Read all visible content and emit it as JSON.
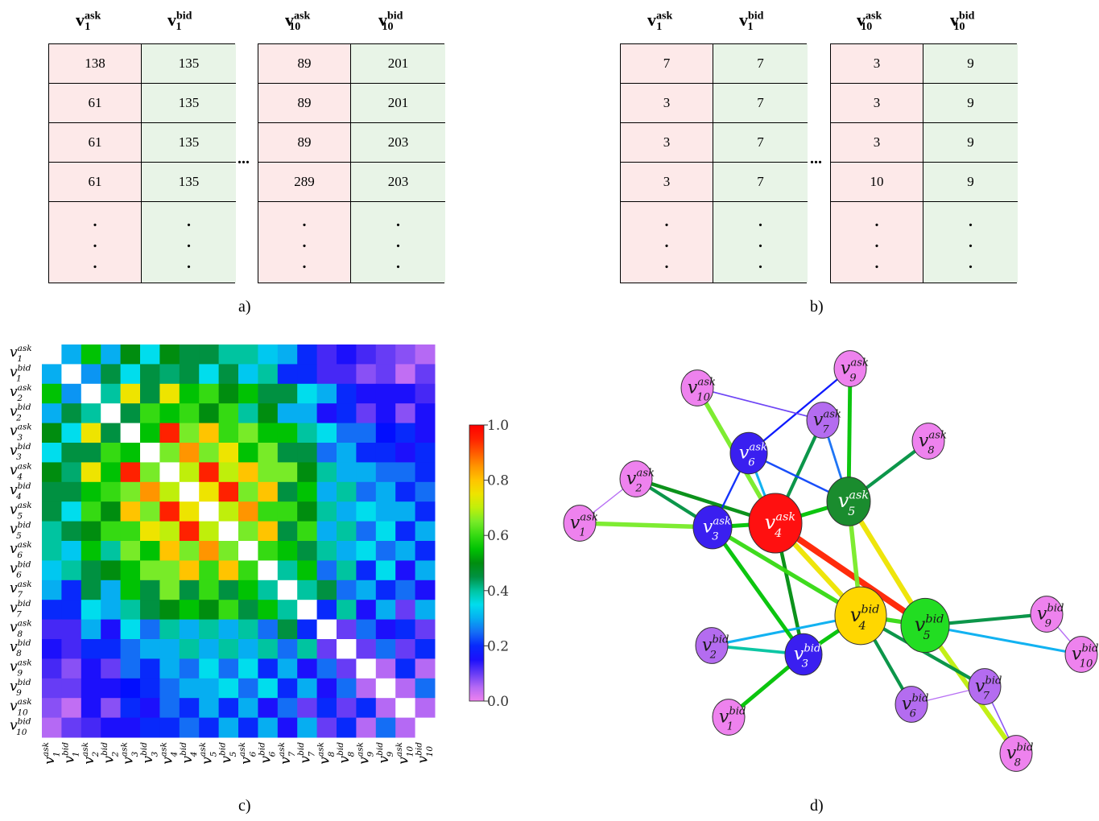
{
  "panel_a": {
    "caption": "a)",
    "headers": [
      "v1ask",
      "v1bid",
      "v10ask",
      "v10bid"
    ],
    "left_rows": [
      [
        "138",
        "135"
      ],
      [
        "61",
        "135"
      ],
      [
        "61",
        "135"
      ],
      [
        "61",
        "135"
      ]
    ],
    "right_rows": [
      [
        "89",
        "201"
      ],
      [
        "89",
        "201"
      ],
      [
        "89",
        "203"
      ],
      [
        "289",
        "203"
      ]
    ],
    "ellipsis": "..."
  },
  "panel_b": {
    "caption": "b)",
    "left_rows": [
      [
        "7",
        "7"
      ],
      [
        "3",
        "7"
      ],
      [
        "3",
        "7"
      ],
      [
        "3",
        "7"
      ]
    ],
    "right_rows": [
      [
        "3",
        "9"
      ],
      [
        "3",
        "9"
      ],
      [
        "3",
        "9"
      ],
      [
        "10",
        "9"
      ]
    ],
    "ellipsis": "..."
  },
  "panel_c": {
    "caption": "c)",
    "colorbar_ticks": [
      "1.0",
      "0.8",
      "0.6",
      "0.4",
      "0.2",
      "0.0"
    ],
    "chart_data": {
      "type": "heatmap",
      "labels": [
        "v1ask",
        "v1bid",
        "v2ask",
        "v2bid",
        "v3ask",
        "v3bid",
        "v4ask",
        "v4bid",
        "v5ask",
        "v5bid",
        "v6ask",
        "v6bid",
        "v7ask",
        "v7bid",
        "v8ask",
        "v8bid",
        "v9ask",
        "v9bid",
        "v10ask",
        "v10bid"
      ],
      "vrange": [
        0,
        1
      ],
      "matrix": [
        [
          1.0,
          0.3,
          0.55,
          0.3,
          0.5,
          0.35,
          0.5,
          0.45,
          0.45,
          0.4,
          0.4,
          0.32,
          0.3,
          0.2,
          0.12,
          0.15,
          0.12,
          0.1,
          0.08,
          0.05
        ],
        [
          0.3,
          1.0,
          0.28,
          0.45,
          0.35,
          0.45,
          0.42,
          0.45,
          0.35,
          0.45,
          0.32,
          0.4,
          0.2,
          0.2,
          0.12,
          0.12,
          0.08,
          0.1,
          0.04,
          0.1
        ],
        [
          0.55,
          0.28,
          1.0,
          0.4,
          0.75,
          0.45,
          0.75,
          0.55,
          0.6,
          0.5,
          0.55,
          0.45,
          0.45,
          0.35,
          0.3,
          0.2,
          0.15,
          0.15,
          0.15,
          0.12
        ],
        [
          0.3,
          0.45,
          0.4,
          1.0,
          0.45,
          0.6,
          0.55,
          0.6,
          0.5,
          0.6,
          0.4,
          0.5,
          0.3,
          0.3,
          0.15,
          0.2,
          0.1,
          0.15,
          0.08,
          0.15
        ],
        [
          0.5,
          0.35,
          0.75,
          0.45,
          1.0,
          0.55,
          0.95,
          0.65,
          0.8,
          0.6,
          0.65,
          0.55,
          0.55,
          0.4,
          0.35,
          0.25,
          0.25,
          0.18,
          0.2,
          0.15
        ],
        [
          0.35,
          0.45,
          0.45,
          0.6,
          0.55,
          1.0,
          0.65,
          0.85,
          0.65,
          0.75,
          0.55,
          0.65,
          0.45,
          0.45,
          0.25,
          0.3,
          0.2,
          0.2,
          0.15,
          0.2
        ],
        [
          0.5,
          0.42,
          0.75,
          0.55,
          0.95,
          0.65,
          1.0,
          0.7,
          0.95,
          0.7,
          0.8,
          0.65,
          0.65,
          0.5,
          0.4,
          0.3,
          0.3,
          0.25,
          0.25,
          0.2
        ],
        [
          0.45,
          0.45,
          0.55,
          0.6,
          0.65,
          0.85,
          0.7,
          1.0,
          0.75,
          0.95,
          0.65,
          0.8,
          0.45,
          0.55,
          0.3,
          0.4,
          0.25,
          0.3,
          0.2,
          0.25
        ],
        [
          0.45,
          0.35,
          0.6,
          0.5,
          0.8,
          0.65,
          0.95,
          0.75,
          1.0,
          0.7,
          0.85,
          0.6,
          0.6,
          0.5,
          0.4,
          0.3,
          0.35,
          0.3,
          0.3,
          0.2
        ],
        [
          0.4,
          0.45,
          0.5,
          0.6,
          0.6,
          0.75,
          0.7,
          0.95,
          0.7,
          1.0,
          0.65,
          0.8,
          0.45,
          0.6,
          0.3,
          0.4,
          0.25,
          0.35,
          0.2,
          0.3
        ],
        [
          0.4,
          0.32,
          0.55,
          0.4,
          0.65,
          0.55,
          0.8,
          0.65,
          0.85,
          0.65,
          1.0,
          0.6,
          0.55,
          0.45,
          0.4,
          0.3,
          0.35,
          0.25,
          0.3,
          0.2
        ],
        [
          0.32,
          0.4,
          0.45,
          0.5,
          0.55,
          0.65,
          0.65,
          0.8,
          0.6,
          0.8,
          0.6,
          1.0,
          0.4,
          0.55,
          0.25,
          0.4,
          0.2,
          0.35,
          0.15,
          0.3
        ],
        [
          0.3,
          0.2,
          0.45,
          0.3,
          0.55,
          0.45,
          0.65,
          0.45,
          0.6,
          0.45,
          0.55,
          0.4,
          1.0,
          0.4,
          0.45,
          0.25,
          0.3,
          0.2,
          0.25,
          0.15
        ],
        [
          0.2,
          0.2,
          0.35,
          0.3,
          0.4,
          0.45,
          0.5,
          0.55,
          0.5,
          0.6,
          0.45,
          0.55,
          0.4,
          1.0,
          0.2,
          0.4,
          0.15,
          0.3,
          0.1,
          0.3
        ],
        [
          0.12,
          0.12,
          0.3,
          0.15,
          0.35,
          0.25,
          0.4,
          0.3,
          0.4,
          0.3,
          0.4,
          0.25,
          0.45,
          0.2,
          1.0,
          0.1,
          0.25,
          0.15,
          0.2,
          0.1
        ],
        [
          0.15,
          0.12,
          0.2,
          0.2,
          0.25,
          0.3,
          0.3,
          0.4,
          0.3,
          0.4,
          0.3,
          0.4,
          0.25,
          0.4,
          0.1,
          1.0,
          0.1,
          0.25,
          0.1,
          0.2
        ],
        [
          0.12,
          0.08,
          0.15,
          0.1,
          0.25,
          0.2,
          0.3,
          0.25,
          0.35,
          0.25,
          0.35,
          0.2,
          0.3,
          0.15,
          0.25,
          0.1,
          1.0,
          0.05,
          0.2,
          0.05
        ],
        [
          0.1,
          0.1,
          0.15,
          0.15,
          0.18,
          0.2,
          0.25,
          0.3,
          0.3,
          0.35,
          0.25,
          0.35,
          0.2,
          0.3,
          0.15,
          0.25,
          0.05,
          1.0,
          0.05,
          0.25
        ],
        [
          0.08,
          0.04,
          0.15,
          0.08,
          0.2,
          0.15,
          0.25,
          0.2,
          0.3,
          0.2,
          0.3,
          0.15,
          0.25,
          0.1,
          0.2,
          0.1,
          0.2,
          0.05,
          1.0,
          0.05
        ],
        [
          0.05,
          0.1,
          0.12,
          0.15,
          0.15,
          0.2,
          0.2,
          0.25,
          0.2,
          0.3,
          0.2,
          0.3,
          0.15,
          0.3,
          0.1,
          0.2,
          0.05,
          0.25,
          0.05,
          1.0
        ]
      ]
    }
  },
  "panel_d": {
    "caption": "d)",
    "nodes": [
      {
        "id": "a1",
        "base": "v",
        "sub": "1",
        "sup": "ask",
        "color": "#ee82ee"
      },
      {
        "id": "a2",
        "base": "v",
        "sub": "2",
        "sup": "ask",
        "color": "#ee82ee"
      },
      {
        "id": "a3",
        "base": "v",
        "sub": "3",
        "sup": "ask",
        "color": "#3a1ff0"
      },
      {
        "id": "a4",
        "base": "v",
        "sub": "4",
        "sup": "ask",
        "color": "#ff1010"
      },
      {
        "id": "a5",
        "base": "v",
        "sub": "5",
        "sup": "ask",
        "color": "#1a8c2e"
      },
      {
        "id": "a6",
        "base": "v",
        "sub": "6",
        "sup": "ask",
        "color": "#3a1ff0"
      },
      {
        "id": "a7",
        "base": "v",
        "sub": "7",
        "sup": "ask",
        "color": "#b46cf0"
      },
      {
        "id": "a8",
        "base": "v",
        "sub": "8",
        "sup": "ask",
        "color": "#ee82ee"
      },
      {
        "id": "a9",
        "base": "v",
        "sub": "9",
        "sup": "ask",
        "color": "#ee82ee"
      },
      {
        "id": "a10",
        "base": "v",
        "sub": "10",
        "sup": "ask",
        "color": "#ee82ee"
      },
      {
        "id": "b1",
        "base": "v",
        "sub": "1",
        "sup": "bid",
        "color": "#ee82ee"
      },
      {
        "id": "b2",
        "base": "v",
        "sub": "2",
        "sup": "bid",
        "color": "#b46cf0"
      },
      {
        "id": "b3",
        "base": "v",
        "sub": "3",
        "sup": "bid",
        "color": "#3a1ff0"
      },
      {
        "id": "b4",
        "base": "v",
        "sub": "4",
        "sup": "bid",
        "color": "#ffd700"
      },
      {
        "id": "b5",
        "base": "v",
        "sub": "5",
        "sup": "bid",
        "color": "#22dd22"
      },
      {
        "id": "b6",
        "base": "v",
        "sub": "6",
        "sup": "bid",
        "color": "#b46cf0"
      },
      {
        "id": "b7",
        "base": "v",
        "sub": "7",
        "sup": "bid",
        "color": "#b46cf0"
      },
      {
        "id": "b8",
        "base": "v",
        "sub": "8",
        "sup": "bid",
        "color": "#ee82ee"
      },
      {
        "id": "b9",
        "base": "v",
        "sub": "9",
        "sup": "bid",
        "color": "#ee82ee"
      },
      {
        "id": "b10",
        "base": "v",
        "sub": "10",
        "sup": "bid",
        "color": "#ee82ee"
      }
    ],
    "edges": [
      {
        "s": "a4",
        "t": "b5",
        "w": 0.95
      },
      {
        "s": "a4",
        "t": "b4",
        "w": 0.75
      },
      {
        "s": "a3",
        "t": "a4",
        "w": 0.55
      },
      {
        "s": "a1",
        "t": "a3",
        "w": 0.65
      },
      {
        "s": "a2",
        "t": "a3",
        "w": 0.45
      },
      {
        "s": "a2",
        "t": "a4",
        "w": 0.5
      },
      {
        "s": "a10",
        "t": "a4",
        "w": 0.65
      },
      {
        "s": "a6",
        "t": "a4",
        "w": 0.3
      },
      {
        "s": "a7",
        "t": "a4",
        "w": 0.45
      },
      {
        "s": "a9",
        "t": "a5",
        "w": 0.55
      },
      {
        "s": "a5",
        "t": "b4",
        "w": 0.65
      },
      {
        "s": "a5",
        "t": "b5",
        "w": 0.75
      },
      {
        "s": "a5",
        "t": "a4",
        "w": 0.55
      },
      {
        "s": "a5",
        "t": "a8",
        "w": 0.45
      },
      {
        "s": "b4",
        "t": "b5",
        "w": 0.6
      },
      {
        "s": "b3",
        "t": "b4",
        "w": 0.55
      },
      {
        "s": "b3",
        "t": "a4",
        "w": 0.5
      },
      {
        "s": "b1",
        "t": "b3",
        "w": 0.55
      },
      {
        "s": "b2",
        "t": "b4",
        "w": 0.3
      },
      {
        "s": "b5",
        "t": "b9",
        "w": 0.45
      },
      {
        "s": "b5",
        "t": "b10",
        "w": 0.3
      },
      {
        "s": "b5",
        "t": "b8",
        "w": 0.7
      },
      {
        "s": "b4",
        "t": "b6",
        "w": 0.45
      },
      {
        "s": "b4",
        "t": "b7",
        "w": 0.45
      },
      {
        "s": "a3",
        "t": "b3",
        "w": 0.55
      },
      {
        "s": "a3",
        "t": "b4",
        "w": 0.6
      },
      {
        "s": "a6",
        "t": "a3",
        "w": 0.2
      },
      {
        "s": "a6",
        "t": "a9",
        "w": 0.18
      },
      {
        "s": "a6",
        "t": "a5",
        "w": 0.22
      },
      {
        "s": "a7",
        "t": "a5",
        "w": 0.25
      },
      {
        "s": "a10",
        "t": "a7",
        "w": 0.1
      },
      {
        "s": "a1",
        "t": "a2",
        "w": 0.05
      },
      {
        "s": "b2",
        "t": "b3",
        "w": 0.4
      },
      {
        "s": "b6",
        "t": "b7",
        "w": 0.05
      },
      {
        "s": "b9",
        "t": "b10",
        "w": 0.05
      },
      {
        "s": "b7",
        "t": "b8",
        "w": 0.08
      }
    ]
  }
}
